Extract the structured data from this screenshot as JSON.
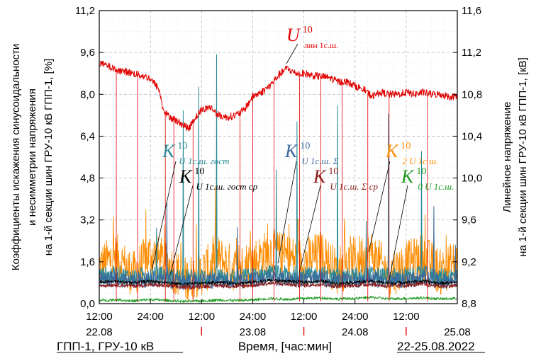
{
  "chart_data": {
    "type": "line",
    "y_left": {
      "label_line1": "Коэффициенты искажения синусоидальности",
      "label_line2": "и несимметрии напряжения",
      "label_line3": "на 1-й секции шин ГРУ-10 кВ ГПП-1, [%]",
      "ticks": [
        "0,0",
        "1,6",
        "3,2",
        "4,8",
        "6,4",
        "8,0",
        "9,6",
        "11,2"
      ],
      "ylim": [
        0,
        11.2
      ]
    },
    "y_right": {
      "label_line1": "Линейное напряжение",
      "label_line2": "на 1-й секции шин ГРУ-10 кВ ГПП-1, [кВ]",
      "ticks": [
        "8,8",
        "9,2",
        "9,6",
        "10,0",
        "10,4",
        "10,8",
        "11,2",
        "11,6"
      ],
      "ylim": [
        8.8,
        11.6
      ]
    },
    "x": {
      "time_ticks": [
        "12:00",
        "24:00",
        "12:00",
        "24:00",
        "12:00",
        "24:00",
        "12:00"
      ],
      "date_labels": [
        "22.08",
        "23.08",
        "24.08",
        "25.08"
      ],
      "range_hours": [
        0,
        84
      ]
    },
    "footer": {
      "left": "ГПП-1, ГРУ-10 кВ",
      "center": "Время, [час:мин]",
      "right": "22-25.08.2022"
    },
    "annotations": {
      "u_lin": {
        "main": "U",
        "sup": "10",
        "sub": "лин 1с.ш."
      },
      "k_gost": {
        "main": "K",
        "sup": "10",
        "sub": "U 1с.ш. гост"
      },
      "k_gost_avg": {
        "main": "K",
        "sup": "10",
        "sub": "U 1с.ш. гост ср"
      },
      "k_sigma": {
        "main": "K",
        "sup": "10",
        "sub": "U 1с.ш. Σ"
      },
      "k_sigma_avg": {
        "main": "K",
        "sup": "10",
        "sub": "U 1с.ш. Σ ср"
      },
      "k2": {
        "main": "K",
        "sup": "10",
        "sub": "2 U 1с.ш."
      },
      "k0": {
        "main": "K",
        "sup": "10",
        "sub": "0 U 1с.ш."
      }
    },
    "series": [
      {
        "key": "u_lin",
        "color": "#e00000",
        "axis": "right",
        "x": [
          0,
          2,
          4,
          6,
          8,
          10,
          12,
          14,
          15,
          16,
          18,
          20,
          21,
          22,
          24,
          26,
          28,
          30,
          32,
          34,
          36,
          38,
          40,
          42,
          44,
          46,
          48,
          50,
          52,
          54,
          56,
          58,
          60,
          62,
          64,
          66,
          68,
          70,
          72,
          74,
          76,
          78,
          80,
          82,
          84
        ],
        "values": [
          11.1,
          11.07,
          11.03,
          11.02,
          11.0,
          10.98,
          10.95,
          10.85,
          10.65,
          10.6,
          10.55,
          10.5,
          10.47,
          10.55,
          10.65,
          10.68,
          10.6,
          10.58,
          10.6,
          10.65,
          10.78,
          10.82,
          10.88,
          10.98,
          11.05,
          11.0,
          11.0,
          10.98,
          10.97,
          10.96,
          10.92,
          10.92,
          10.88,
          10.85,
          10.78,
          10.82,
          10.8,
          10.8,
          10.82,
          10.8,
          10.82,
          10.8,
          10.8,
          10.78,
          10.78
        ]
      },
      {
        "key": "k_gost",
        "color": "#2a8a96",
        "axis": "left",
        "x": [
          0,
          4,
          8,
          12,
          16,
          20,
          24,
          28,
          32,
          36,
          40,
          44,
          48,
          52,
          56,
          60,
          64,
          68,
          72,
          76,
          80,
          84
        ],
        "values": [
          1.05,
          1.1,
          1.0,
          1.1,
          1.05,
          0.95,
          1.0,
          1.05,
          1.0,
          1.05,
          1.15,
          1.1,
          1.05,
          1.1,
          1.0,
          1.05,
          1.1,
          1.0,
          1.05,
          1.1,
          1.0,
          1.05
        ]
      },
      {
        "key": "k_sigma",
        "color": "#3c6a9c",
        "axis": "left",
        "x": [
          0,
          4,
          8,
          12,
          16,
          20,
          24,
          28,
          32,
          36,
          40,
          44,
          48,
          52,
          56,
          60,
          64,
          68,
          72,
          76,
          80,
          84
        ],
        "values": [
          0.9,
          0.95,
          0.85,
          0.95,
          0.9,
          0.8,
          0.85,
          0.9,
          0.85,
          0.9,
          1.0,
          0.95,
          0.9,
          0.95,
          0.85,
          0.9,
          0.95,
          0.85,
          0.9,
          0.95,
          0.85,
          0.9
        ]
      },
      {
        "key": "k_gost_avg",
        "color": "#000000",
        "axis": "left",
        "x": [
          0,
          4,
          8,
          12,
          16,
          20,
          24,
          28,
          32,
          36,
          40,
          44,
          48,
          52,
          56,
          60,
          64,
          68,
          72,
          76,
          80,
          84
        ],
        "values": [
          0.82,
          0.85,
          0.8,
          0.86,
          0.8,
          0.74,
          0.78,
          0.82,
          0.78,
          0.82,
          0.9,
          0.86,
          0.82,
          0.86,
          0.78,
          0.82,
          0.86,
          0.78,
          0.82,
          0.86,
          0.78,
          0.82
        ]
      },
      {
        "key": "k_sigma_avg",
        "color": "#8b1a1a",
        "axis": "left",
        "x": [
          0,
          4,
          8,
          12,
          16,
          20,
          24,
          28,
          32,
          36,
          40,
          44,
          48,
          52,
          56,
          60,
          64,
          68,
          72,
          76,
          80,
          84
        ],
        "values": [
          0.7,
          0.72,
          0.68,
          0.72,
          0.68,
          0.62,
          0.66,
          0.7,
          0.66,
          0.7,
          0.78,
          0.74,
          0.7,
          0.74,
          0.66,
          0.7,
          0.74,
          0.66,
          0.7,
          0.74,
          0.66,
          0.7
        ]
      },
      {
        "key": "k2",
        "color": "#ff8c00",
        "axis": "left",
        "x": [
          0,
          4,
          8,
          12,
          16,
          20,
          24,
          28,
          32,
          36,
          40,
          44,
          48,
          52,
          56,
          60,
          64,
          68,
          72,
          76,
          80,
          84
        ],
        "values": [
          1.4,
          1.8,
          1.1,
          1.9,
          1.5,
          0.9,
          1.2,
          1.7,
          1.3,
          1.6,
          2.0,
          1.8,
          1.6,
          1.9,
          1.2,
          1.7,
          1.9,
          1.1,
          1.5,
          1.8,
          1.2,
          1.6
        ]
      },
      {
        "key": "k0",
        "color": "#1f9a1f",
        "axis": "left",
        "x": [
          0,
          4,
          8,
          12,
          16,
          20,
          24,
          28,
          32,
          36,
          40,
          44,
          48,
          52,
          56,
          60,
          64,
          68,
          72,
          76,
          80,
          84
        ],
        "values": [
          0.12,
          0.15,
          0.1,
          0.16,
          0.12,
          0.08,
          0.1,
          0.14,
          0.12,
          0.14,
          0.2,
          0.16,
          0.2,
          0.22,
          0.18,
          0.2,
          0.24,
          0.18,
          0.2,
          0.22,
          0.18,
          0.2
        ]
      }
    ]
  }
}
